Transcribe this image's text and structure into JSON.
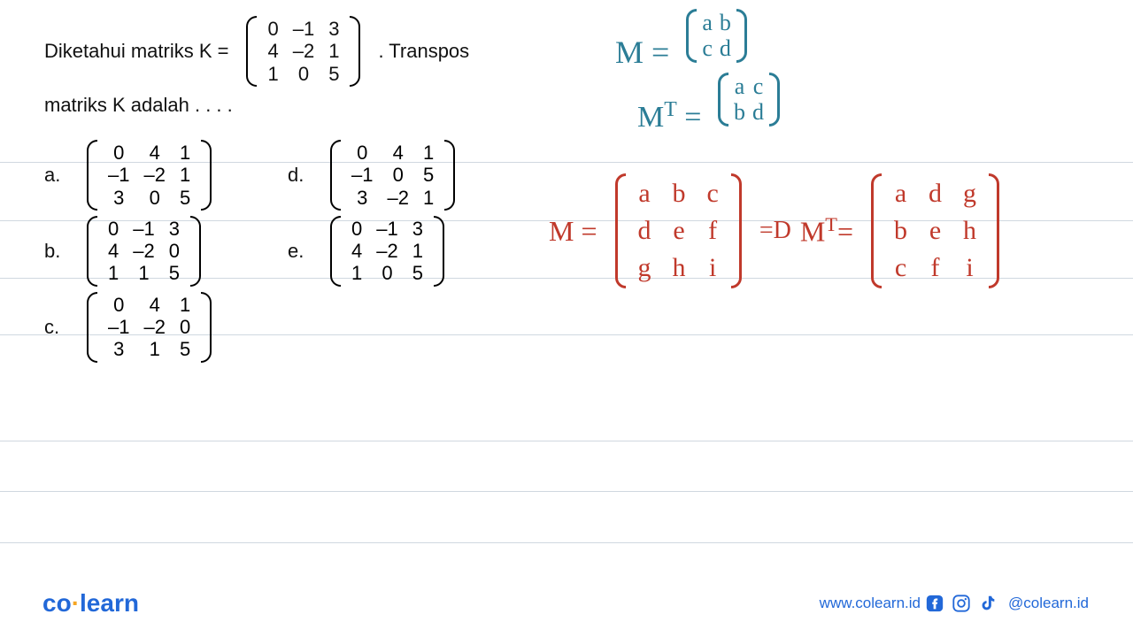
{
  "rules": [
    183,
    249,
    314,
    378,
    498,
    555,
    613
  ],
  "question": {
    "line1_pre": "Diketahui matriks K =",
    "line1_post": ". Transpos",
    "line2": "matriks K adalah . . . .",
    "K": [
      [
        "0",
        "–1",
        "3"
      ],
      [
        "4",
        "–2",
        "1"
      ],
      [
        "1",
        "0",
        "5"
      ]
    ]
  },
  "options": {
    "a": {
      "label": "a.",
      "rows": [
        [
          "0",
          "4",
          "1"
        ],
        [
          "–1",
          "–2",
          "1"
        ],
        [
          "3",
          "0",
          "5"
        ]
      ]
    },
    "b": {
      "label": "b.",
      "rows": [
        [
          "0",
          "–1",
          "3"
        ],
        [
          "4",
          "–2",
          "0"
        ],
        [
          "1",
          "1",
          "5"
        ]
      ]
    },
    "c": {
      "label": "c.",
      "rows": [
        [
          "0",
          "4",
          "1"
        ],
        [
          "–1",
          "–2",
          "0"
        ],
        [
          "3",
          "1",
          "5"
        ]
      ]
    },
    "d": {
      "label": "d.",
      "rows": [
        [
          "0",
          "4",
          "1"
        ],
        [
          "–1",
          "0",
          "5"
        ],
        [
          "3",
          "–2",
          "1"
        ]
      ]
    },
    "e": {
      "label": "e.",
      "rows": [
        [
          "0",
          "–1",
          "3"
        ],
        [
          "4",
          "–2",
          "1"
        ],
        [
          "1",
          "0",
          "5"
        ]
      ]
    }
  },
  "notes_teal": {
    "m_text": "M =",
    "m_rows": [
      [
        "a",
        "b"
      ],
      [
        "c",
        "d"
      ]
    ],
    "mt_pre": "M",
    "mt_sup": "T",
    "mt_post": " =",
    "mt_rows": [
      [
        "a",
        "c"
      ],
      [
        "b",
        "d"
      ]
    ]
  },
  "notes_red": {
    "m_text": "M =",
    "arrow": "=D",
    "mt_pre": "M",
    "mt_sup": "T",
    "mt_post": "=",
    "m3_rows": [
      [
        "a",
        "b",
        "c"
      ],
      [
        "d",
        "e",
        "f"
      ],
      [
        "g",
        "h",
        "i"
      ]
    ],
    "mt3_rows": [
      [
        "a",
        "d",
        "g"
      ],
      [
        "b",
        "e",
        "h"
      ],
      [
        "c",
        "f",
        "i"
      ]
    ]
  },
  "footer": {
    "logo_co": "co",
    "logo_dot": "·",
    "logo_learn": "learn",
    "url": "www.colearn.id",
    "handle": "@colearn.id"
  },
  "colors": {
    "teal": "#2b7d96",
    "red": "#c0392b",
    "brand": "#2268d8",
    "rule": "#d0d8e0"
  }
}
